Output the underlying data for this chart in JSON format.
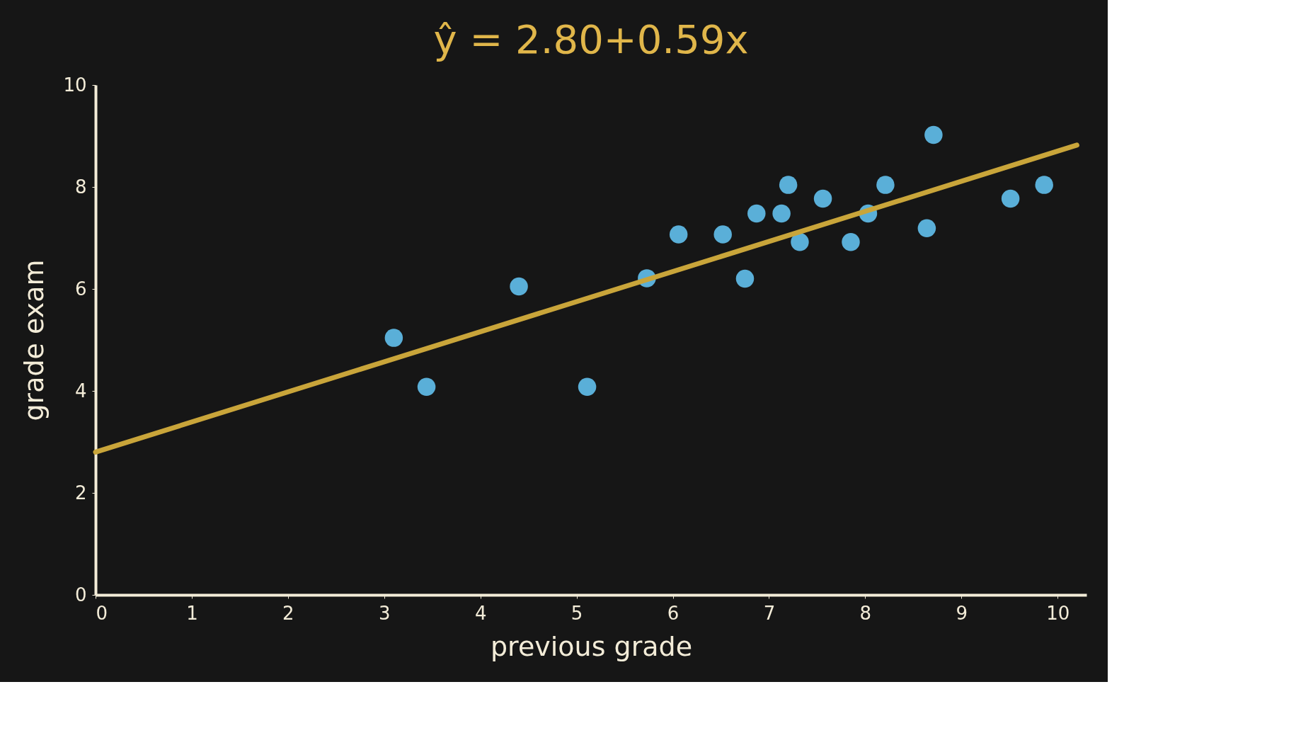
{
  "chart_data": {
    "type": "scatter",
    "title": "ŷ = 2.80+0.59x",
    "xlabel": "previous grade",
    "ylabel": "grade exam",
    "xlim": [
      0,
      10.3
    ],
    "ylim": [
      0,
      10
    ],
    "xticks": [
      0,
      1,
      2,
      3,
      4,
      5,
      6,
      7,
      8,
      9,
      10
    ],
    "yticks": [
      0,
      2,
      4,
      6,
      8,
      10
    ],
    "grid": false,
    "series": [
      {
        "color": "#5aafd8",
        "marker": "circle",
        "x": [
          3.1,
          3.44,
          4.4,
          5.11,
          5.73,
          6.06,
          6.52,
          6.75,
          6.87,
          7.13,
          7.2,
          7.32,
          7.56,
          7.85,
          8.03,
          8.21,
          8.64,
          8.71,
          9.51,
          9.86
        ],
        "values": [
          5.04,
          4.08,
          6.05,
          4.08,
          6.21,
          7.07,
          7.07,
          6.2,
          7.48,
          7.48,
          8.04,
          6.92,
          7.77,
          6.92,
          7.48,
          8.04,
          7.19,
          9.02,
          7.77,
          8.04
        ]
      },
      {
        "type": "line",
        "color": "#c9a53a",
        "line_style": "solid",
        "x": [
          0,
          10.2
        ],
        "values": [
          2.8,
          8.82
        ]
      }
    ]
  }
}
